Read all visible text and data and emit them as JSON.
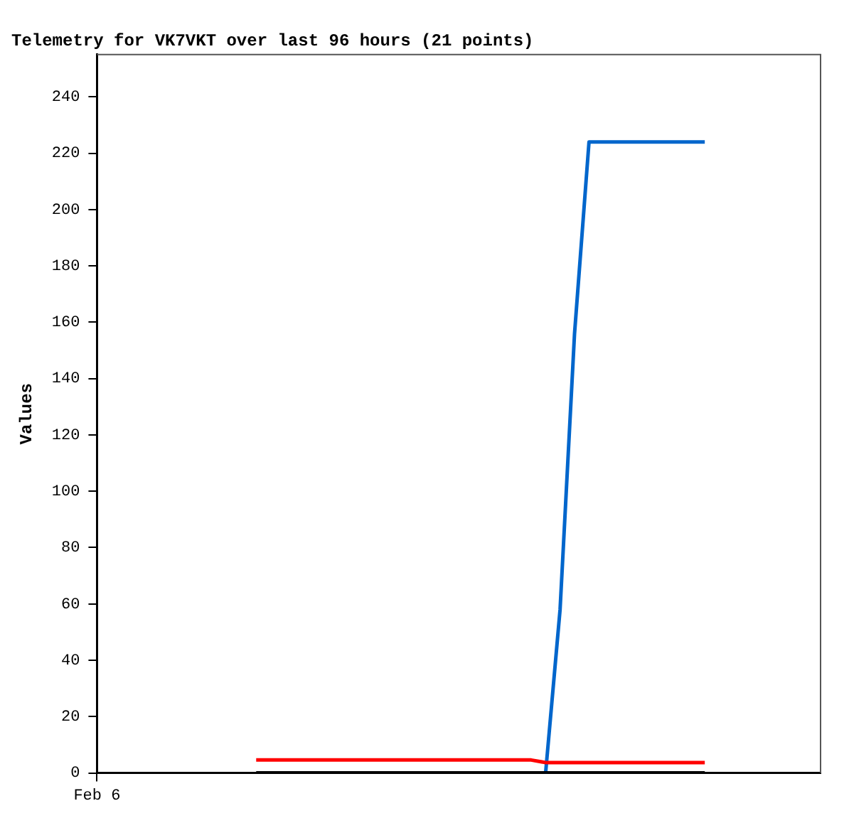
{
  "chart_data": {
    "type": "line",
    "title": "Telemetry for VK7VKT over last 96 hours (21 points)",
    "ylabel": "Values",
    "categories": [
      "Feb 6",
      null,
      null,
      null,
      null,
      null,
      null,
      null,
      null,
      null,
      null,
      null,
      null,
      null,
      null,
      null,
      null,
      null,
      null,
      null,
      null,
      null,
      null,
      null,
      null,
      null,
      null,
      null,
      null,
      null,
      null,
      null,
      null,
      null,
      null,
      null,
      null,
      null,
      null,
      null,
      null,
      null,
      null,
      null,
      null,
      null,
      null,
      null,
      null,
      null,
      null
    ],
    "ylim": [
      0,
      255
    ],
    "yticks": [
      0,
      20,
      40,
      60,
      80,
      100,
      120,
      140,
      160,
      180,
      200,
      220,
      240
    ],
    "grid": false,
    "legend": false,
    "marker": "none",
    "line_style": "solid",
    "series": [
      {
        "color": "#ff0000",
        "values": [
          null,
          null,
          null,
          null,
          null,
          null,
          null,
          null,
          null,
          null,
          null,
          4.6,
          4.6,
          4.6,
          4.6,
          4.6,
          4.6,
          4.6,
          4.6,
          4.6,
          4.6,
          4.6,
          4.6,
          4.6,
          4.6,
          4.6,
          4.6,
          4.6,
          4.6,
          4.6,
          4.6,
          3.7,
          3.7,
          3.7,
          3.7,
          3.7,
          3.7,
          3.7,
          3.7,
          3.7,
          3.7,
          3.7,
          3.7,
          null,
          null,
          null,
          null,
          null,
          null,
          null,
          null
        ]
      },
      {
        "color": "#000000",
        "values": [
          null,
          null,
          null,
          null,
          null,
          null,
          null,
          null,
          null,
          null,
          null,
          0,
          0,
          0,
          0,
          0,
          0,
          0,
          0,
          0,
          0,
          0,
          0,
          0,
          0,
          0,
          0,
          0,
          0,
          0,
          0,
          0,
          0,
          0,
          0,
          0,
          0,
          0,
          0,
          0,
          0,
          0,
          0,
          null,
          null,
          null,
          null,
          null,
          null,
          null,
          null
        ]
      },
      {
        "color": "#0066cc",
        "values": [
          null,
          null,
          null,
          null,
          null,
          null,
          null,
          null,
          null,
          null,
          null,
          null,
          null,
          null,
          null,
          null,
          null,
          null,
          null,
          null,
          null,
          null,
          null,
          null,
          null,
          null,
          null,
          null,
          null,
          null,
          null,
          0,
          58,
          156,
          224,
          224,
          224,
          224,
          224,
          224,
          224,
          224,
          224,
          null,
          null,
          null,
          null,
          null,
          null,
          null,
          null
        ]
      }
    ]
  }
}
